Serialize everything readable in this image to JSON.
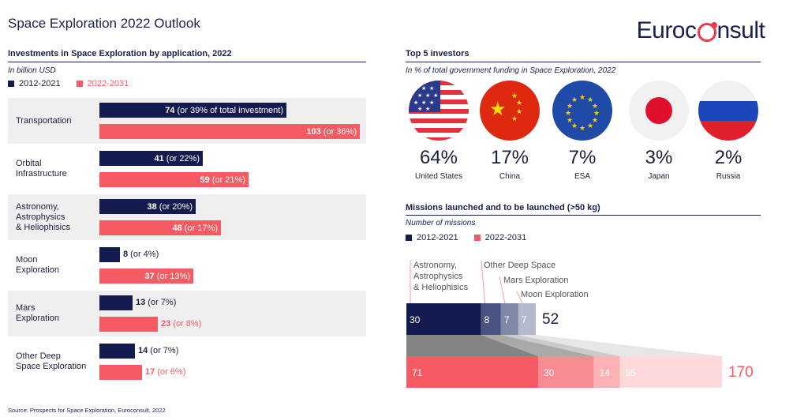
{
  "title": "Space Exploration 2022 Outlook",
  "logo": {
    "text_pre": "Euroc",
    "text_post": "nsult",
    "accent": "#e83a4b"
  },
  "colors": {
    "navy": "#141c4f",
    "red": "#f65b63"
  },
  "investments": {
    "heading": "Investments in Space Exploration by application, 2022",
    "unit": "In billion USD",
    "legend": [
      "2012-2021",
      "2022-2031"
    ]
  },
  "investors": {
    "heading": "Top 5 investors",
    "unit": "In % of total government funding in Space Exploration, 2022",
    "items": [
      {
        "pct": "64%",
        "name": "United States",
        "flag": "us-flag-icon"
      },
      {
        "pct": "17%",
        "name": "China",
        "flag": "china-flag-icon"
      },
      {
        "pct": "7%",
        "name": "ESA",
        "flag": "eu-flag-icon"
      },
      {
        "pct": "3%",
        "name": "Japan",
        "flag": "japan-flag-icon"
      },
      {
        "pct": "2%",
        "name": "Russia",
        "flag": "russia-flag-icon"
      }
    ]
  },
  "missions": {
    "heading": "Missions launched and to be launched (>50 kg)",
    "unit": "Number of missions",
    "legend": [
      "2012-2021",
      "2022-2031"
    ],
    "labels": {
      "astro": [
        "Astronomy,",
        "Astrophysics",
        "& Heliophisics"
      ],
      "deep": "Other Deep Space",
      "mars": "Mars Exploration",
      "moon": "Moon Exploration"
    }
  },
  "source": "Source: Prospects for Space Exploration, Euroconsult, 2022",
  "chart_data": [
    {
      "type": "bar",
      "orientation": "horizontal",
      "title": "Investments in Space Exploration by application, 2022",
      "unit": "In billion USD",
      "categories": [
        "Transportation",
        "Orbital Infrastructure",
        "Astronomy, Astrophysics & Heliophisics",
        "Moon Exploration",
        "Mars Exploration",
        "Other Deep Space Exploration"
      ],
      "series": [
        {
          "name": "2012-2021",
          "values": [
            74,
            41,
            38,
            8,
            13,
            14
          ],
          "labels": [
            "74 (or 39% of total investment)",
            "41 (or 22%)",
            "38 (or 20%)",
            "8 (or 4%)",
            "13 (or 7%)",
            "14 (or 7%)"
          ]
        },
        {
          "name": "2022-2031",
          "values": [
            103,
            59,
            48,
            37,
            23,
            17
          ],
          "labels": [
            "103 (or 36%)",
            "59 (or 21%)",
            "48 (or 17%)",
            "37 (or 13%)",
            "23 (or 8%)",
            "17 (or 6%)"
          ]
        }
      ]
    },
    {
      "type": "bar",
      "orientation": "horizontal",
      "stacked": true,
      "title": "Missions launched and to be launched (>50 kg)",
      "unit": "Number of missions",
      "categories": [
        "Astronomy, Astrophysics & Heliophisics",
        "Other Deep Space",
        "Mars Exploration",
        "Moon Exploration"
      ],
      "series": [
        {
          "name": "2012-2021",
          "values": [
            30,
            8,
            7,
            7
          ],
          "total": 52
        },
        {
          "name": "2022-2031",
          "values": [
            71,
            30,
            14,
            55
          ],
          "total": 170
        }
      ]
    }
  ]
}
